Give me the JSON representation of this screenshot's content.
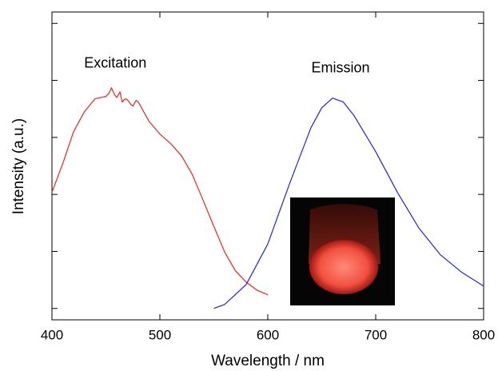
{
  "chart_data": {
    "type": "line",
    "xlabel": "Wavelength / nm",
    "ylabel": "Intensity (a.u.)",
    "xlim": [
      400,
      800
    ],
    "xticks": [
      400,
      500,
      600,
      700,
      800
    ],
    "ylim": [
      -0.2,
      5.2
    ],
    "yticks": [
      0,
      1,
      2,
      3,
      4,
      5
    ],
    "series": [
      {
        "name": "Excitation",
        "color": "#ff2020",
        "x": [
          400,
          410,
          420,
          430,
          440,
          450,
          453,
          455,
          458,
          460,
          463,
          465,
          468,
          470,
          473,
          475,
          478,
          480,
          483,
          485,
          490,
          500,
          510,
          520,
          530,
          540,
          550,
          560,
          570,
          580,
          590,
          600
        ],
        "values": [
          2.04,
          2.54,
          3.1,
          3.45,
          3.68,
          3.72,
          3.78,
          3.87,
          3.75,
          3.7,
          3.8,
          3.62,
          3.68,
          3.66,
          3.58,
          3.55,
          3.65,
          3.62,
          3.52,
          3.45,
          3.28,
          3.06,
          2.89,
          2.68,
          2.35,
          1.9,
          1.44,
          0.99,
          0.66,
          0.46,
          0.32,
          0.24
        ]
      },
      {
        "name": "Emission",
        "color": "#2020ff",
        "x": [
          550,
          560,
          580,
          600,
          620,
          640,
          650,
          660,
          670,
          680,
          700,
          720,
          740,
          760,
          780,
          800
        ],
        "values": [
          0.0,
          0.07,
          0.42,
          1.13,
          2.18,
          3.17,
          3.52,
          3.69,
          3.62,
          3.38,
          2.75,
          2.04,
          1.41,
          0.94,
          0.63,
          0.39
        ]
      }
    ]
  }
}
